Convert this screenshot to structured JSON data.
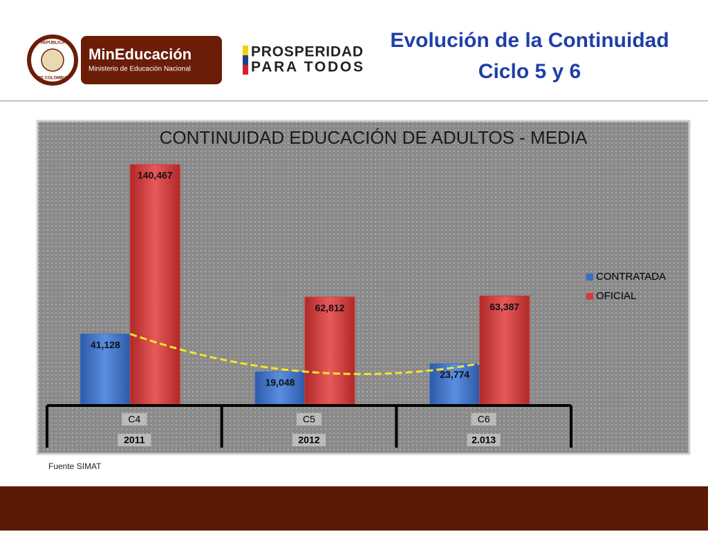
{
  "header": {
    "title_lines": [
      "Evolución de la Continuidad",
      "Ciclo 5 y 6"
    ],
    "logo_name": "MinEducación",
    "logo_subtitle": "Ministerio de Educación Nacional",
    "emblem_top": "REPÚBLICA",
    "emblem_bottom": "DE COLOMBIA",
    "slogan_lines": [
      "PROSPERIDAD",
      "PARA TODOS"
    ]
  },
  "source": "Fuente SIMAT",
  "chart_data": {
    "type": "bar",
    "title": "CONTINUIDAD EDUCACIÓN DE ADULTOS - MEDIA",
    "categories": [
      "C4",
      "C5",
      "C6"
    ],
    "category_groups": [
      "2011",
      "2012",
      "2.013"
    ],
    "series": [
      {
        "name": "CONTRATADA",
        "color": "#3a6fc4",
        "values": [
          41128,
          19048,
          23774
        ],
        "value_labels": [
          "41,128",
          "19,048",
          "23,774"
        ]
      },
      {
        "name": "OFICIAL",
        "color": "#d43b3b",
        "values": [
          140467,
          62812,
          63387
        ],
        "value_labels": [
          "140,467",
          "62,812",
          "63,387"
        ]
      }
    ],
    "ylim": [
      0,
      150000
    ],
    "legend": "right",
    "trendline_color": "#f2e52a"
  }
}
